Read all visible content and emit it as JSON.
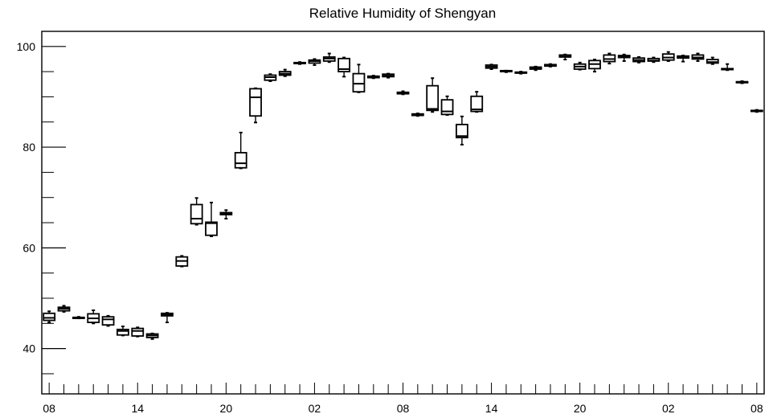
{
  "chart_data": {
    "type": "box",
    "title": "Relative Humidity of Shengyan",
    "xlabel": "",
    "ylabel": "",
    "ylim": [
      31,
      103
    ],
    "yticks_major": [
      40,
      60,
      80,
      100
    ],
    "yticks_minor": [
      35,
      45,
      50,
      55,
      65,
      70,
      75,
      85,
      90,
      95
    ],
    "x_tick_labels": [
      "08",
      "14",
      "20",
      "02",
      "08",
      "14",
      "20",
      "02",
      "08"
    ],
    "x_label_hours": [
      0,
      6,
      12,
      18,
      24,
      30,
      36,
      42,
      48
    ],
    "x_hour_range": [
      -0.5,
      48.5
    ],
    "grid": false,
    "boxes": [
      {
        "hour": 0,
        "min": 45.2,
        "q1": 45.6,
        "median": 46.1,
        "q3": 47.0,
        "max": 47.4
      },
      {
        "hour": 1,
        "min": 47.3,
        "q1": 47.5,
        "median": 47.9,
        "q3": 48.2,
        "max": 48.5
      },
      {
        "hour": 2,
        "min": 46.0,
        "q1": 46.0,
        "median": 46.1,
        "q3": 46.2,
        "max": 46.3
      },
      {
        "hour": 3,
        "min": 45.0,
        "q1": 45.2,
        "median": 46.0,
        "q3": 46.9,
        "max": 47.6
      },
      {
        "hour": 4,
        "min": 44.5,
        "q1": 44.7,
        "median": 45.8,
        "q3": 46.3,
        "max": 46.5
      },
      {
        "hour": 5,
        "min": 42.6,
        "q1": 42.7,
        "median": 43.5,
        "q3": 43.8,
        "max": 44.4
      },
      {
        "hour": 6,
        "min": 42.4,
        "q1": 42.5,
        "median": 43.5,
        "q3": 44.0,
        "max": 44.2
      },
      {
        "hour": 7,
        "min": 41.9,
        "q1": 42.2,
        "median": 42.6,
        "q3": 42.9,
        "max": 43.0
      },
      {
        "hour": 8,
        "min": 45.2,
        "q1": 46.5,
        "median": 46.8,
        "q3": 47.0,
        "max": 47.1
      },
      {
        "hour": 9,
        "min": 56.3,
        "q1": 56.4,
        "median": 57.4,
        "q3": 58.2,
        "max": 58.4
      },
      {
        "hour": 10,
        "min": 64.6,
        "q1": 64.8,
        "median": 65.8,
        "q3": 68.6,
        "max": 69.9
      },
      {
        "hour": 11,
        "min": 62.3,
        "q1": 62.5,
        "median": 64.9,
        "q3": 65.1,
        "max": 69.0
      },
      {
        "hour": 12,
        "min": 65.8,
        "q1": 66.6,
        "median": 66.8,
        "q3": 67.0,
        "max": 67.5
      },
      {
        "hour": 13,
        "min": 75.8,
        "q1": 75.9,
        "median": 76.8,
        "q3": 78.9,
        "max": 82.9
      },
      {
        "hour": 14,
        "min": 84.9,
        "q1": 86.2,
        "median": 89.9,
        "q3": 91.6,
        "max": 91.7
      },
      {
        "hour": 15,
        "min": 93.1,
        "q1": 93.3,
        "median": 93.9,
        "q3": 94.3,
        "max": 94.5
      },
      {
        "hour": 16,
        "min": 94.1,
        "q1": 94.3,
        "median": 94.6,
        "q3": 95.0,
        "max": 95.4
      },
      {
        "hour": 17,
        "min": 96.5,
        "q1": 96.6,
        "median": 96.7,
        "q3": 96.8,
        "max": 96.9
      },
      {
        "hour": 18,
        "min": 96.3,
        "q1": 96.7,
        "median": 97.1,
        "q3": 97.3,
        "max": 97.5
      },
      {
        "hour": 19,
        "min": 96.9,
        "q1": 97.1,
        "median": 97.6,
        "q3": 97.9,
        "max": 98.6
      },
      {
        "hour": 20,
        "min": 94.0,
        "q1": 95.0,
        "median": 95.5,
        "q3": 97.6,
        "max": 97.8
      },
      {
        "hour": 21,
        "min": 90.9,
        "q1": 91.0,
        "median": 92.6,
        "q3": 94.6,
        "max": 96.4
      },
      {
        "hour": 22,
        "min": 93.7,
        "q1": 93.8,
        "median": 94.0,
        "q3": 94.1,
        "max": 94.2
      },
      {
        "hour": 23,
        "min": 93.8,
        "q1": 94.0,
        "median": 94.2,
        "q3": 94.5,
        "max": 94.6
      },
      {
        "hour": 24,
        "min": 90.5,
        "q1": 90.6,
        "median": 90.7,
        "q3": 90.9,
        "max": 91.1
      },
      {
        "hour": 25,
        "min": 86.2,
        "q1": 86.3,
        "median": 86.4,
        "q3": 86.6,
        "max": 86.7
      },
      {
        "hour": 26,
        "min": 87.0,
        "q1": 87.3,
        "median": 87.6,
        "q3": 92.2,
        "max": 93.7
      },
      {
        "hour": 27,
        "min": 86.4,
        "q1": 86.5,
        "median": 87.1,
        "q3": 89.4,
        "max": 90.1
      },
      {
        "hour": 28,
        "min": 80.5,
        "q1": 81.9,
        "median": 82.2,
        "q3": 84.5,
        "max": 86.1
      },
      {
        "hour": 29,
        "min": 87.0,
        "q1": 87.1,
        "median": 87.5,
        "q3": 90.1,
        "max": 91.0
      },
      {
        "hour": 30,
        "min": 95.5,
        "q1": 95.7,
        "median": 96.0,
        "q3": 96.3,
        "max": 96.4
      },
      {
        "hour": 31,
        "min": 94.9,
        "q1": 95.0,
        "median": 95.1,
        "q3": 95.2,
        "max": 95.2
      },
      {
        "hour": 32,
        "min": 94.6,
        "q1": 94.7,
        "median": 94.8,
        "q3": 94.9,
        "max": 95.0
      },
      {
        "hour": 33,
        "min": 95.3,
        "q1": 95.5,
        "median": 95.7,
        "q3": 95.9,
        "max": 96.0
      },
      {
        "hour": 34,
        "min": 96.0,
        "q1": 96.1,
        "median": 96.2,
        "q3": 96.4,
        "max": 96.5
      },
      {
        "hour": 35,
        "min": 97.4,
        "q1": 97.9,
        "median": 98.0,
        "q3": 98.3,
        "max": 98.4
      },
      {
        "hour": 36,
        "min": 95.4,
        "q1": 95.5,
        "median": 96.0,
        "q3": 96.5,
        "max": 96.8
      },
      {
        "hour": 37,
        "min": 95.0,
        "q1": 95.6,
        "median": 96.5,
        "q3": 97.2,
        "max": 97.4
      },
      {
        "hour": 38,
        "min": 96.6,
        "q1": 97.0,
        "median": 97.5,
        "q3": 98.3,
        "max": 98.6
      },
      {
        "hour": 39,
        "min": 97.1,
        "q1": 97.8,
        "median": 98.0,
        "q3": 98.2,
        "max": 98.4
      },
      {
        "hour": 40,
        "min": 96.8,
        "q1": 97.0,
        "median": 97.3,
        "q3": 97.7,
        "max": 97.9
      },
      {
        "hour": 41,
        "min": 96.9,
        "q1": 97.1,
        "median": 97.2,
        "q3": 97.6,
        "max": 97.8
      },
      {
        "hour": 42,
        "min": 97.1,
        "q1": 97.3,
        "median": 97.8,
        "q3": 98.5,
        "max": 98.9
      },
      {
        "hour": 43,
        "min": 97.0,
        "q1": 97.7,
        "median": 97.9,
        "q3": 98.1,
        "max": 98.2
      },
      {
        "hour": 44,
        "min": 97.1,
        "q1": 97.5,
        "median": 97.8,
        "q3": 98.3,
        "max": 98.6
      },
      {
        "hour": 45,
        "min": 96.5,
        "q1": 96.7,
        "median": 96.9,
        "q3": 97.4,
        "max": 97.8
      },
      {
        "hour": 46,
        "min": 95.3,
        "q1": 95.4,
        "median": 95.5,
        "q3": 95.6,
        "max": 96.5
      },
      {
        "hour": 47,
        "min": 92.7,
        "q1": 92.8,
        "median": 92.9,
        "q3": 93.0,
        "max": 93.1
      },
      {
        "hour": 48,
        "min": 87.0,
        "q1": 87.1,
        "median": 87.2,
        "q3": 87.3,
        "max": 87.4
      }
    ],
    "colors": {
      "box": "#000000",
      "frame": "#000000",
      "background": "#ffffff"
    }
  }
}
